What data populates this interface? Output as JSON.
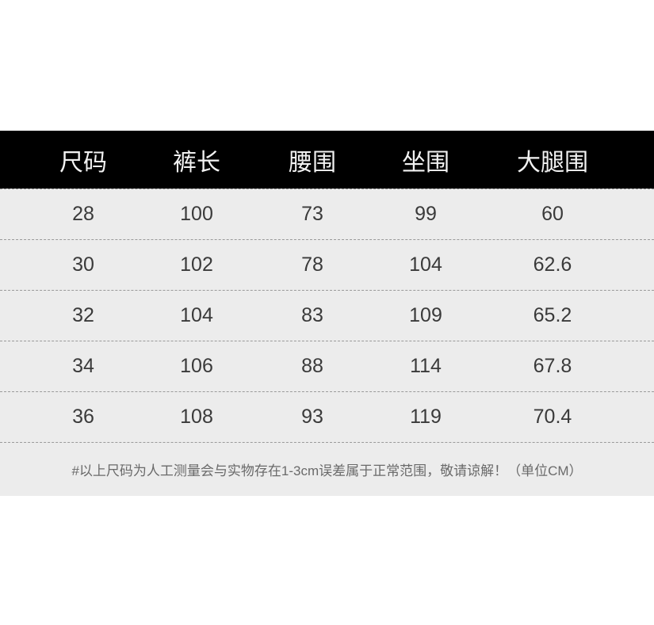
{
  "table": {
    "headers": [
      "尺码",
      "裤长",
      "腰围",
      "坐围",
      "大腿围"
    ],
    "rows": [
      [
        "28",
        "100",
        "73",
        "99",
        "60"
      ],
      [
        "30",
        "102",
        "78",
        "104",
        "62.6"
      ],
      [
        "32",
        "104",
        "83",
        "109",
        "65.2"
      ],
      [
        "34",
        "106",
        "88",
        "114",
        "67.8"
      ],
      [
        "36",
        "108",
        "93",
        "119",
        "70.4"
      ]
    ],
    "note": "#以上尺码为人工测量会与实物存在1-3cm误差属于正常范围，敬请谅解！（单位CM）"
  },
  "colors": {
    "header_bg": "#000000",
    "row_bg": "#ececec",
    "header_text": "#f2f2f2"
  }
}
